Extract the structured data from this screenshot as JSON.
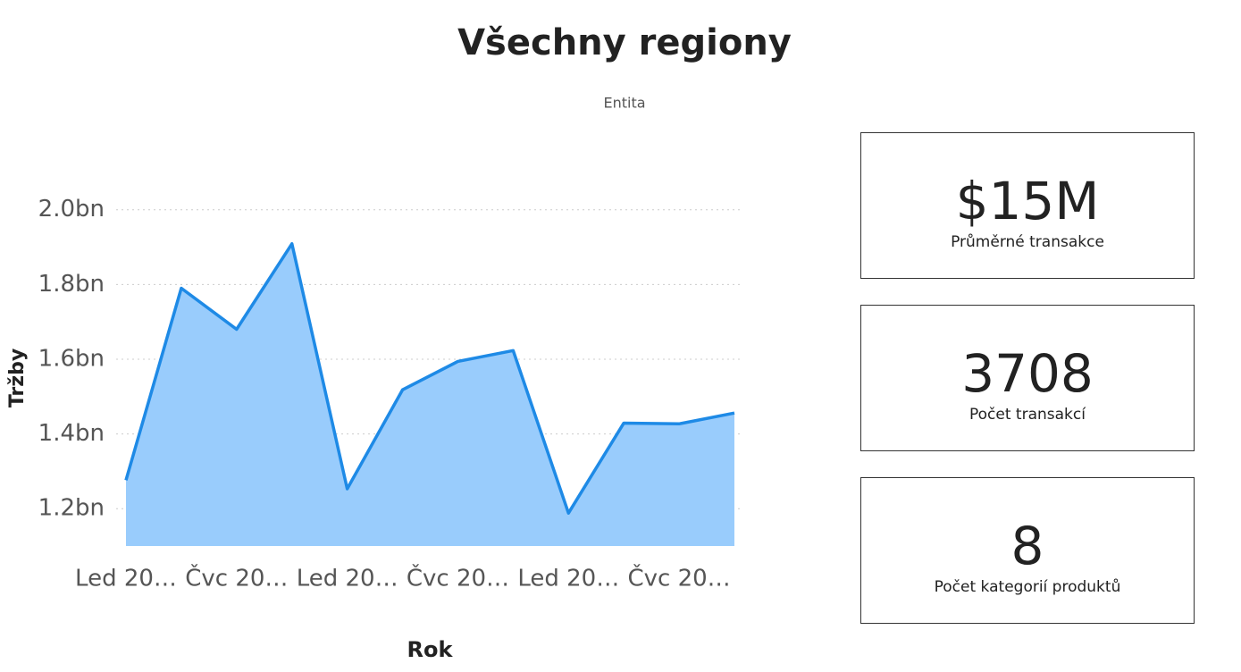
{
  "title": "Všechny regiony",
  "subtitle": "Entita",
  "chart_data": {
    "type": "area",
    "ylabel": "Tržby",
    "xlabel": "Rok",
    "categories": [
      "Led 20…",
      null,
      "Čvc 20…",
      null,
      "Led 20…",
      null,
      "Čvc 20…",
      null,
      "Led 20…",
      null,
      "Čvc 20…",
      null
    ],
    "values": [
      1276000000,
      1790000000,
      1680000000,
      1909000000,
      1253000000,
      1518000000,
      1594000000,
      1623000000,
      1188000000,
      1429000000,
      1427000000,
      1456000000
    ],
    "color": "#1e8ae6",
    "fill": "#99ccfc",
    "ylim": [
      1100000000,
      2040000000
    ],
    "yticks": [
      {
        "value": 1200000000,
        "label": "1.2bn"
      },
      {
        "value": 1400000000,
        "label": "1.4bn"
      },
      {
        "value": 1600000000,
        "label": "1.6bn"
      },
      {
        "value": 1800000000,
        "label": "1.8bn"
      },
      {
        "value": 2000000000,
        "label": "2.0bn"
      }
    ],
    "grid": true
  },
  "cards": [
    {
      "value": "$15M",
      "label": "Průměrné transakce"
    },
    {
      "value": "3708",
      "label": "Počet transakcí"
    },
    {
      "value": "8",
      "label": "Počet kategorií produktů"
    }
  ]
}
